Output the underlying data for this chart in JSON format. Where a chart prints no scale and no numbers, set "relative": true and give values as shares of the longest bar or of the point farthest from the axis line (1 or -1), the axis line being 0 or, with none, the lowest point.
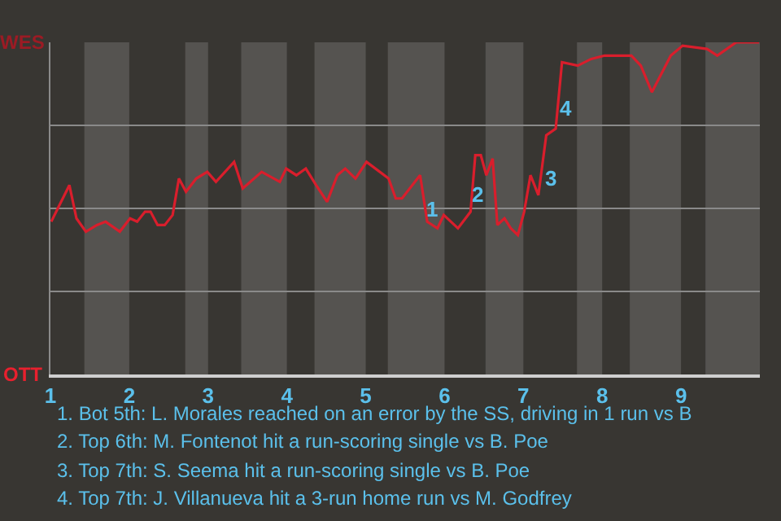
{
  "chart_data": {
    "type": "line",
    "relative": true,
    "x": [
      1.01,
      1.24,
      1.33,
      1.45,
      1.59,
      1.7,
      1.88,
      2.01,
      2.1,
      2.2,
      2.27,
      2.36,
      2.45,
      2.55,
      2.63,
      2.72,
      2.85,
      2.99,
      3.1,
      3.33,
      3.44,
      3.68,
      3.91,
      3.99,
      4.12,
      4.24,
      4.37,
      4.51,
      4.64,
      4.74,
      4.87,
      5.01,
      5.29,
      5.38,
      5.46,
      5.69,
      5.78,
      5.91,
      5.99,
      6.17,
      6.33,
      6.39,
      6.46,
      6.53,
      6.61,
      6.67,
      6.76,
      6.84,
      6.93,
      7.01,
      7.09,
      7.19,
      7.29,
      7.41,
      7.49,
      7.69,
      7.86,
      8.03,
      8.37,
      8.49,
      8.63,
      8.87,
      9.02,
      9.33,
      9.46,
      9.7,
      9.99
    ],
    "series": [
      {
        "color": "#d91e2c",
        "values": [
          0.46,
          0.57,
          0.47,
          0.43,
          0.45,
          0.46,
          0.43,
          0.47,
          0.46,
          0.49,
          0.49,
          0.45,
          0.45,
          0.48,
          0.59,
          0.55,
          0.59,
          0.61,
          0.58,
          0.64,
          0.56,
          0.61,
          0.58,
          0.62,
          0.6,
          0.62,
          0.57,
          0.52,
          0.6,
          0.62,
          0.59,
          0.64,
          0.59,
          0.53,
          0.53,
          0.6,
          0.46,
          0.44,
          0.48,
          0.44,
          0.49,
          0.66,
          0.66,
          0.6,
          0.65,
          0.45,
          0.47,
          0.44,
          0.42,
          0.49,
          0.6,
          0.54,
          0.72,
          0.74,
          0.94,
          0.93,
          0.95,
          0.96,
          0.96,
          0.93,
          0.85,
          0.96,
          0.99,
          0.98,
          0.96,
          1.0,
          1.0
        ]
      }
    ],
    "xlim": [
      1,
      10
    ],
    "xticks": [
      1,
      2,
      3,
      4,
      5,
      6,
      7,
      8,
      9
    ],
    "tick_labels": "x",
    "grid": "y",
    "marker": "none",
    "line_style": "solid",
    "bands": [
      {
        "axis": "x",
        "from": 1.43,
        "to": 2,
        "color": "#555350"
      },
      {
        "axis": "x",
        "from": 2.71,
        "to": 3,
        "color": "#555350"
      },
      {
        "axis": "x",
        "from": 3.42,
        "to": 4,
        "color": "#555350"
      },
      {
        "axis": "x",
        "from": 4.35,
        "to": 5,
        "color": "#555350"
      },
      {
        "axis": "x",
        "from": 5.28,
        "to": 6,
        "color": "#555350"
      },
      {
        "axis": "x",
        "from": 6.52,
        "to": 7,
        "color": "#555350"
      },
      {
        "axis": "x",
        "from": 7.68,
        "to": 8,
        "color": "#555350"
      },
      {
        "axis": "x",
        "from": 8.35,
        "to": 9,
        "color": "#555350"
      },
      {
        "axis": "x",
        "from": 9.31,
        "to": 10,
        "color": "#555350"
      }
    ],
    "annotations": [
      "WES",
      "OTT",
      {
        "text": "1",
        "x": 5.84,
        "y": 0.5
      },
      {
        "text": "2",
        "x": 6.42,
        "y": 0.54
      },
      {
        "text": "3",
        "x": 7.34,
        "y": 0.59
      },
      {
        "text": "4",
        "x": 7.54,
        "y": 0.8
      },
      "1. Bot 5th: L. Morales reached on an error by the SS, driving in 1 run vs B",
      "2. Top 6th: M. Fontenot hit a run-scoring single vs B. Poe",
      "3. Top 7th: S. Seema hit a run-scoring single vs B. Poe",
      "4. Top 7th: J. Villanueva hit a 3-run home run vs M. Godfrey"
    ]
  }
}
